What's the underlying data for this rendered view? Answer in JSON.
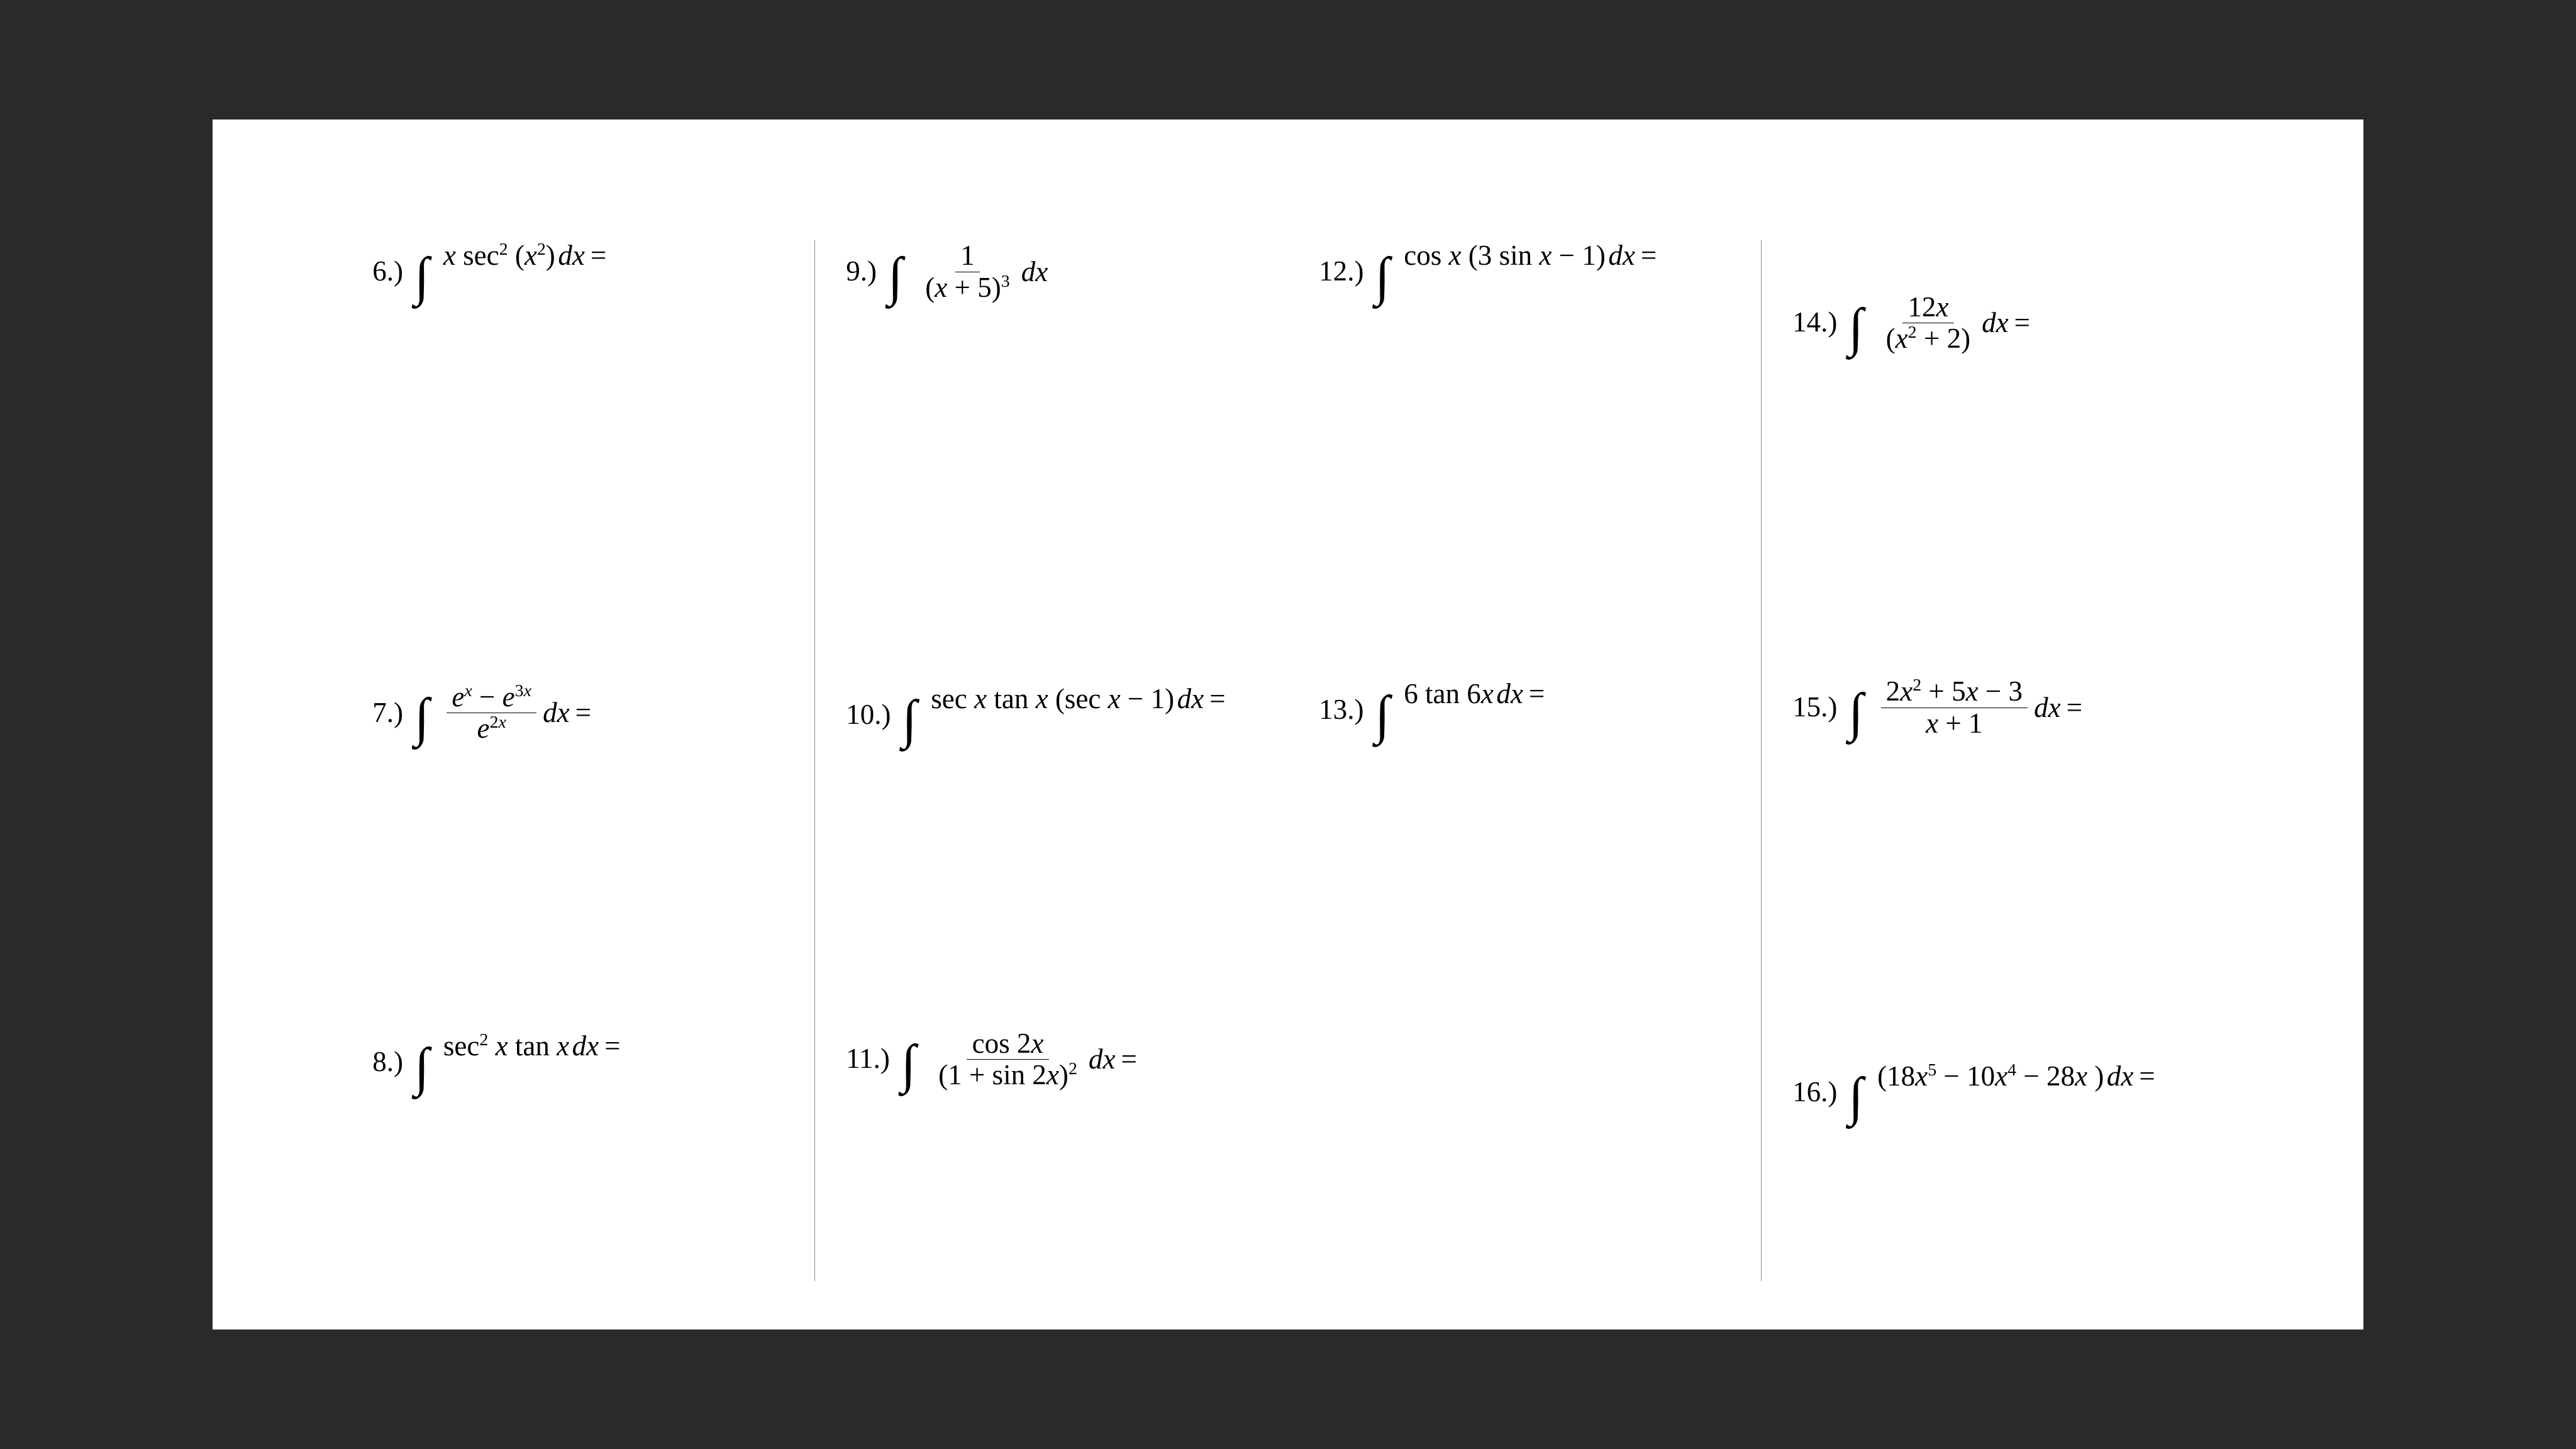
{
  "page": {
    "background": "#2a2a2a",
    "paper_color": "#ffffff",
    "text_color": "#000000",
    "divider_color": "#888888",
    "font_family": "Times New Roman",
    "base_fontsize_pt": 14,
    "columns": 4,
    "dividers_after_columns": [
      1,
      3
    ]
  },
  "problems": {
    "p6": {
      "num": "6.)",
      "integrand_html": "<span class='it'>x</span> sec<sup>2</sup> (<span class='it'>x</span><sup>2</sup>)",
      "tail": "dx",
      "eq": "="
    },
    "p7": {
      "num": "7.)",
      "frac_num_html": "<span class='it'>e</span><sup><span class='it'>x</span></sup> − <span class='it'>e</span><sup>3<span class='it'>x</span></sup>",
      "frac_den_html": "<span class='it'>e</span><sup>2<span class='it'>x</span></sup>",
      "tail": "dx",
      "eq": "="
    },
    "p8": {
      "num": "8.)",
      "integrand_html": "sec<sup>2</sup> <span class='it'>x</span> tan <span class='it'>x</span>",
      "tail": "dx",
      "eq": "="
    },
    "p9": {
      "num": "9.)",
      "frac_num_html": "1",
      "frac_den_html": "(<span class='it'>x</span> + 5)<sup>3</sup>",
      "tail": "dx",
      "eq": ""
    },
    "p10": {
      "num": "10.)",
      "integrand_html": "sec <span class='it'>x</span> tan <span class='it'>x</span> (sec <span class='it'>x</span> − 1)",
      "tail": "dx",
      "eq": "="
    },
    "p11": {
      "num": "11.)",
      "frac_num_html": "cos 2<span class='it'>x</span>",
      "frac_den_html": "(1 + sin 2<span class='it'>x</span>)<sup>2</sup>",
      "tail": "dx",
      "eq": "="
    },
    "p12": {
      "num": "12.)",
      "integrand_html": "cos <span class='it'>x</span> (3 sin <span class='it'>x</span> − 1)",
      "tail": "dx",
      "eq": "="
    },
    "p13": {
      "num": "13.)",
      "integrand_html": "6 tan 6<span class='it'>x</span>",
      "tail": "dx",
      "eq": "="
    },
    "p14": {
      "num": "14.)",
      "frac_num_html": "12<span class='it'>x</span>",
      "frac_den_html": "(<span class='it'>x</span><sup>2</sup> + 2)",
      "tail": "dx",
      "eq": "="
    },
    "p15": {
      "num": "15.)",
      "frac_num_html": "2<span class='it'>x</span><sup>2</sup> + 5<span class='it'>x</span> − 3",
      "frac_den_html": "<span class='it'>x</span> + 1",
      "tail": "dx",
      "eq": "="
    },
    "p16": {
      "num": "16.)",
      "integrand_html": "(18<span class='it'>x</span><sup>5</sup> − 10<span class='it'>x</span><sup>4</sup> − 28<span class='it'>x</span> )",
      "tail": "dx",
      "eq": "="
    }
  }
}
